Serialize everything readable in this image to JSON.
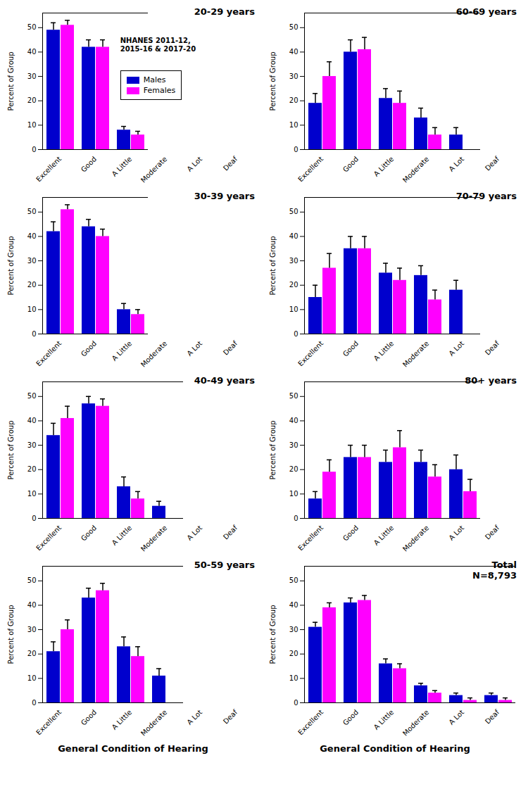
{
  "chart_data": [
    {
      "type": "bar",
      "title": "20-29 years",
      "categories": [
        "Excellent",
        "Good",
        "A Little",
        "Moderate",
        "A Lot",
        "Deaf"
      ],
      "series": [
        {
          "name": "Males",
          "color": "#0000CD",
          "values": [
            49,
            42,
            8,
            0,
            0,
            0
          ],
          "errors": [
            3,
            3,
            1.5,
            0,
            0,
            0
          ]
        },
        {
          "name": "Females",
          "color": "#FF00FF",
          "values": [
            51,
            42,
            6,
            0,
            0,
            0
          ],
          "errors": [
            2,
            3,
            1.5,
            0,
            0,
            0
          ]
        }
      ],
      "ylim": [
        0,
        56
      ],
      "yticks": [
        0,
        10,
        20,
        30,
        40,
        50
      ],
      "ylabel": "Percent of Group",
      "annotation": "NHANES 2011-12,\n2015-16 & 2017-20",
      "legend": "center"
    },
    {
      "type": "bar",
      "title": "30-39 years",
      "categories": [
        "Excellent",
        "Good",
        "A Little",
        "Moderate",
        "A Lot",
        "Deaf"
      ],
      "series": [
        {
          "name": "Males",
          "color": "#0000CD",
          "values": [
            42,
            44,
            10,
            0,
            0,
            0
          ],
          "errors": [
            4,
            3,
            2.5,
            0,
            0,
            0
          ]
        },
        {
          "name": "Females",
          "color": "#FF00FF",
          "values": [
            51,
            40,
            8,
            0,
            0,
            0
          ],
          "errors": [
            2,
            3,
            2,
            0,
            0,
            0
          ]
        }
      ],
      "ylim": [
        0,
        56
      ],
      "yticks": [
        0,
        10,
        20,
        30,
        40,
        50
      ],
      "ylabel": "Percent of Group"
    },
    {
      "type": "bar",
      "title": "40-49 years",
      "categories": [
        "Excellent",
        "Good",
        "A Little",
        "Moderate",
        "A Lot",
        "Deaf"
      ],
      "series": [
        {
          "name": "Males",
          "color": "#0000CD",
          "values": [
            34,
            47,
            13,
            5,
            0,
            0
          ],
          "errors": [
            5,
            3,
            4,
            2,
            0,
            0
          ]
        },
        {
          "name": "Females",
          "color": "#FF00FF",
          "values": [
            41,
            46,
            8,
            0,
            0,
            0
          ],
          "errors": [
            5,
            3,
            3,
            0,
            0,
            0
          ]
        }
      ],
      "ylim": [
        0,
        56
      ],
      "yticks": [
        0,
        10,
        20,
        30,
        40,
        50
      ],
      "ylabel": "Percent of Group"
    },
    {
      "type": "bar",
      "title": "50-59 years",
      "categories": [
        "Excellent",
        "Good",
        "A Little",
        "Moderate",
        "A Lot",
        "Deaf"
      ],
      "series": [
        {
          "name": "Males",
          "color": "#0000CD",
          "values": [
            21,
            43,
            23,
            11,
            0,
            0
          ],
          "errors": [
            4,
            4,
            4,
            3,
            0,
            0
          ]
        },
        {
          "name": "Females",
          "color": "#FF00FF",
          "values": [
            30,
            46,
            19,
            0,
            0,
            0
          ],
          "errors": [
            4,
            3,
            4,
            0,
            0,
            0
          ]
        }
      ],
      "ylim": [
        0,
        56
      ],
      "yticks": [
        0,
        10,
        20,
        30,
        40,
        50
      ],
      "ylabel": "Percent of Group",
      "xlabel": "General Condition of Hearing"
    },
    {
      "type": "bar",
      "title": "60-69 years",
      "categories": [
        "Excellent",
        "Good",
        "A Little",
        "Moderate",
        "A Lot",
        "Deaf"
      ],
      "series": [
        {
          "name": "Males",
          "color": "#0000CD",
          "values": [
            19,
            40,
            21,
            13,
            6,
            0
          ],
          "errors": [
            4,
            5,
            4,
            4,
            3,
            0
          ]
        },
        {
          "name": "Females",
          "color": "#FF00FF",
          "values": [
            30,
            41,
            19,
            6,
            0,
            0
          ],
          "errors": [
            6,
            5,
            5,
            3,
            0,
            0
          ]
        }
      ],
      "ylim": [
        0,
        56
      ],
      "yticks": [
        0,
        10,
        20,
        30,
        40,
        50
      ],
      "ylabel": "Percent of Group"
    },
    {
      "type": "bar",
      "title": "70-79 years",
      "categories": [
        "Excellent",
        "Good",
        "A Little",
        "Moderate",
        "A Lot",
        "Deaf"
      ],
      "series": [
        {
          "name": "Males",
          "color": "#0000CD",
          "values": [
            15,
            35,
            25,
            24,
            18,
            0
          ],
          "errors": [
            5,
            5,
            4,
            4,
            4,
            0
          ]
        },
        {
          "name": "Females",
          "color": "#FF00FF",
          "values": [
            27,
            35,
            22,
            14,
            0,
            0
          ],
          "errors": [
            6,
            5,
            5,
            4,
            0,
            0
          ]
        }
      ],
      "ylim": [
        0,
        56
      ],
      "yticks": [
        0,
        10,
        20,
        30,
        40,
        50
      ],
      "ylabel": "Percent of Group"
    },
    {
      "type": "bar",
      "title": "80+ years",
      "categories": [
        "Excellent",
        "Good",
        "A Little",
        "Moderate",
        "A Lot",
        "Deaf"
      ],
      "series": [
        {
          "name": "Males",
          "color": "#0000CD",
          "values": [
            8,
            25,
            23,
            23,
            20,
            0
          ],
          "errors": [
            3,
            5,
            5,
            5,
            6,
            0
          ]
        },
        {
          "name": "Females",
          "color": "#FF00FF",
          "values": [
            19,
            25,
            29,
            17,
            11,
            0
          ],
          "errors": [
            5,
            5,
            7,
            5,
            5,
            0
          ]
        }
      ],
      "ylim": [
        0,
        56
      ],
      "yticks": [
        0,
        10,
        20,
        30,
        40,
        50
      ],
      "ylabel": "Percent of Group"
    },
    {
      "type": "bar",
      "title": "Total\nN=8,793",
      "categories": [
        "Excellent",
        "Good",
        "A Little",
        "Moderate",
        "A Lot",
        "Deaf"
      ],
      "series": [
        {
          "name": "Males",
          "color": "#0000CD",
          "values": [
            31,
            41,
            16,
            7,
            3,
            3
          ],
          "errors": [
            2,
            2,
            2,
            1,
            1,
            1
          ]
        },
        {
          "name": "Females",
          "color": "#FF00FF",
          "values": [
            39,
            42,
            14,
            4,
            1,
            1
          ],
          "errors": [
            2,
            2,
            2,
            1,
            1,
            1
          ]
        }
      ],
      "ylim": [
        0,
        56
      ],
      "yticks": [
        0,
        10,
        20,
        30,
        40,
        50
      ],
      "ylabel": "Percent of Group",
      "xlabel": "General Condition of Hearing"
    }
  ]
}
